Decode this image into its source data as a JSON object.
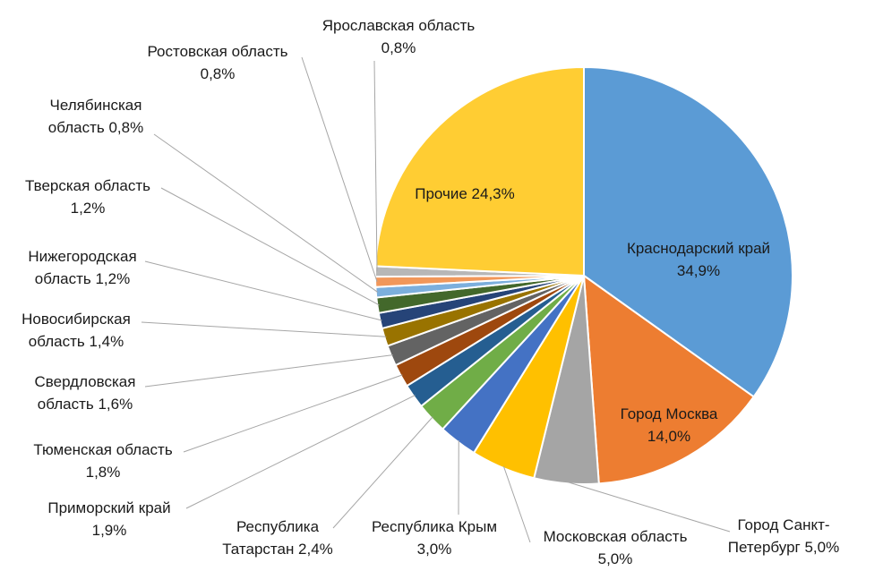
{
  "chart_data": {
    "type": "pie",
    "slices": [
      {
        "name": "Краснодарский край",
        "value": 34.9,
        "label_lines": [
          "Краснодарский край",
          "34,9%"
        ],
        "color": "#5B9BD5"
      },
      {
        "name": "Город Москва",
        "value": 14.0,
        "label_lines": [
          "Город Москва",
          "14,0%"
        ],
        "color": "#ED7D31"
      },
      {
        "name": "Город Санкт-Петербург",
        "value": 5.0,
        "label_lines": [
          "Город Санкт-",
          "Петербург 5,0%"
        ],
        "color": "#A5A5A5"
      },
      {
        "name": "Московская область",
        "value": 5.0,
        "label_lines": [
          "Московская область",
          "5,0%"
        ],
        "color": "#FFC000"
      },
      {
        "name": "Республика Крым",
        "value": 3.0,
        "label_lines": [
          "Республика Крым",
          "3,0%"
        ],
        "color": "#4472C4"
      },
      {
        "name": "Республика Татарстан",
        "value": 2.4,
        "label_lines": [
          "Республика",
          "Татарстан 2,4%"
        ],
        "color": "#70AD47"
      },
      {
        "name": "Приморский край",
        "value": 1.9,
        "label_lines": [
          "Приморский край",
          "1,9%"
        ],
        "color": "#255E91"
      },
      {
        "name": "Тюменская область",
        "value": 1.8,
        "label_lines": [
          "Тюменская область",
          "1,8%"
        ],
        "color": "#9E480E"
      },
      {
        "name": "Свердловская область",
        "value": 1.6,
        "label_lines": [
          "Свердловская",
          "область 1,6%"
        ],
        "color": "#636363"
      },
      {
        "name": "Новосибирская область",
        "value": 1.4,
        "label_lines": [
          "Новосибирская",
          "область 1,4%"
        ],
        "color": "#997300"
      },
      {
        "name": "Нижегородская область",
        "value": 1.2,
        "label_lines": [
          "Нижегородская",
          "область 1,2%"
        ],
        "color": "#264478"
      },
      {
        "name": "Тверская область",
        "value": 1.2,
        "label_lines": [
          "Тверская область",
          "1,2%"
        ],
        "color": "#43682B"
      },
      {
        "name": "Челябинская область",
        "value": 0.8,
        "label_lines": [
          "Челябинская",
          "область 0,8%"
        ],
        "color": "#7CAFDD"
      },
      {
        "name": "Ростовская область",
        "value": 0.8,
        "label_lines": [
          "Ростовская область",
          "0,8%"
        ],
        "color": "#F1975A"
      },
      {
        "name": "Ярославская область",
        "value": 0.8,
        "label_lines": [
          "Ярославская область",
          "0,8%"
        ],
        "color": "#B7B7B7"
      },
      {
        "name": "Прочие",
        "value": 24.3,
        "label_lines": [
          "Прочие 24,3%"
        ],
        "color": "#FFCD33"
      }
    ],
    "start_angle_deg": 0,
    "direction": "clockwise",
    "legend": "none",
    "title": ""
  }
}
